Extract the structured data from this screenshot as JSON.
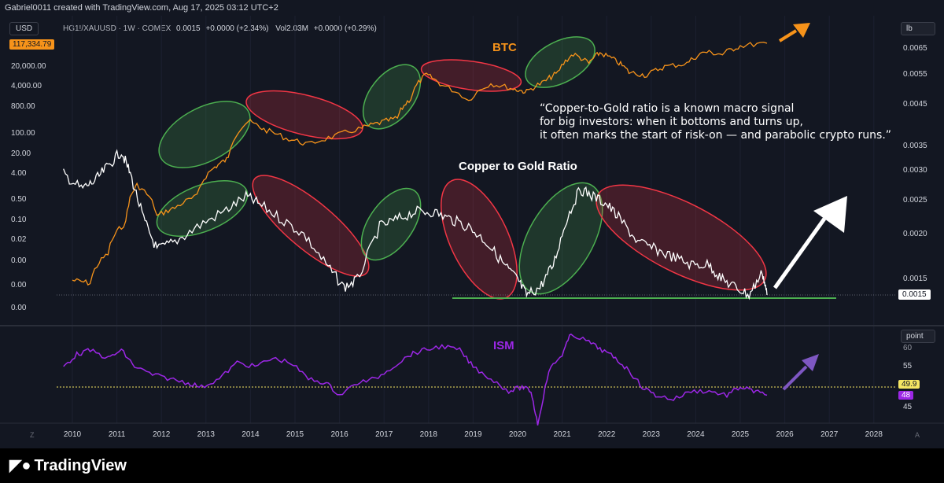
{
  "header": {
    "attribution": "Gabriel0011 created with TradingView.com, Aug 17, 2025 03:12 UTC+2",
    "symbol": "HG1!/XAUUSD · 1W · COMEX",
    "last": "0.0015",
    "change": "+0.0000 (+2.34%)",
    "vol_label": "Vol",
    "vol": "2.03M",
    "vol_change": "+0.0000 (+0.29%)"
  },
  "left_scale": {
    "currency": "USD",
    "btc_price": "117,334.79",
    "ticks": [
      "20,000.00",
      "4,000.00",
      "800.00",
      "100.00",
      "20.00",
      "4.00",
      "0.50",
      "0.10",
      "0.02",
      "0.00",
      "0.00",
      "0.00"
    ]
  },
  "right_scale": {
    "unit": "lb",
    "ticks": [
      "0.0065",
      "0.0055",
      "0.0045",
      "0.0035",
      "0.0030",
      "0.0025",
      "0.0020",
      "0.0015"
    ],
    "last_value": "0.0015"
  },
  "ism_scale": {
    "unit": "point",
    "ticks": [
      "60",
      "55",
      "45"
    ],
    "tag_a": "49.9",
    "tag_b": "48"
  },
  "x_axis": {
    "years": [
      "2010",
      "2011",
      "2012",
      "2013",
      "2014",
      "2015",
      "2016",
      "2017",
      "2018",
      "2019",
      "2020",
      "2021",
      "2022",
      "2023",
      "2024",
      "2025",
      "2026",
      "2027",
      "2028"
    ],
    "corner_left": "Z",
    "corner_right": "A"
  },
  "annotations": {
    "btc_label": "BTC",
    "ratio_label": "Copper to Gold Ratio",
    "ism_label": "ISM",
    "quote": "“Copper-to-Gold ratio is a known macro signal\nfor big investors: when it bottoms and turns up,\nit often marks the start of risk-on — and parabolic crypto runs.”"
  },
  "footer": {
    "brand": "TradingView"
  },
  "colors": {
    "background": "#131722",
    "btc": "#f7931a",
    "ratio": "#ffffff",
    "ism": "#9c27e6",
    "support_line": "#4caf50",
    "bull_ellipse": "#4caf50",
    "bear_ellipse": "#f23645",
    "ism_50_line": "#f5e663",
    "arrow_white": "#ffffff",
    "arrow_btc": "#f7931a",
    "arrow_ism": "#7e57c2"
  },
  "chart_data": [
    {
      "type": "line",
      "title": "BTC",
      "log_scale": true,
      "x": [
        2010.0,
        2010.4,
        2010.8,
        2011.2,
        2011.45,
        2011.9,
        2012.3,
        2012.8,
        2013.2,
        2013.5,
        2013.95,
        2014.3,
        2014.8,
        2015.3,
        2015.9,
        2016.5,
        2016.9,
        2017.3,
        2017.6,
        2017.95,
        2018.3,
        2018.9,
        2019.4,
        2019.9,
        2020.2,
        2020.6,
        2020.9,
        2021.25,
        2021.6,
        2021.85,
        2022.2,
        2022.5,
        2022.9,
        2023.3,
        2023.8,
        2024.2,
        2024.6,
        2025.0,
        2025.6
      ],
      "y": [
        0.06,
        0.05,
        0.3,
        2,
        20,
        3,
        5,
        10,
        60,
        100,
        1000,
        600,
        350,
        240,
        400,
        650,
        900,
        1200,
        4000,
        17000,
        9000,
        3500,
        10000,
        7200,
        6000,
        11000,
        19000,
        60000,
        34000,
        65000,
        40000,
        20000,
        16500,
        28000,
        34000,
        69000,
        60000,
        100000,
        117334.79
      ]
    },
    {
      "type": "line",
      "title": "Copper to Gold Ratio",
      "unit": "lb",
      "x": [
        2009.8,
        2010.2,
        2010.5,
        2010.8,
        2011.1,
        2011.3,
        2011.6,
        2011.9,
        2012.3,
        2012.8,
        2013.4,
        2013.9,
        2014.2,
        2014.7,
        2015.2,
        2015.7,
        2016.1,
        2016.4,
        2016.9,
        2017.3,
        2017.7,
        2018.1,
        2018.5,
        2018.9,
        2019.3,
        2019.7,
        2020.0,
        2020.2,
        2020.5,
        2020.8,
        2021.1,
        2021.4,
        2021.7,
        2022.0,
        2022.3,
        2022.7,
        2023.1,
        2023.5,
        2023.9,
        2024.3,
        2024.6,
        2024.9,
        2025.2,
        2025.5,
        2025.6
      ],
      "y": [
        0.0031,
        0.0029,
        0.003,
        0.0032,
        0.0034,
        0.0031,
        0.0025,
        0.0021,
        0.0022,
        0.0024,
        0.0026,
        0.0028,
        0.0027,
        0.0025,
        0.0023,
        0.0019,
        0.0016,
        0.0017,
        0.0024,
        0.0025,
        0.0026,
        0.0026,
        0.0025,
        0.0024,
        0.0022,
        0.0019,
        0.0017,
        0.0015,
        0.0016,
        0.0019,
        0.0025,
        0.0029,
        0.0028,
        0.0027,
        0.0025,
        0.0022,
        0.0021,
        0.002,
        0.0019,
        0.0019,
        0.0017,
        0.0016,
        0.0015,
        0.0018,
        0.0015
      ]
    },
    {
      "type": "line",
      "title": "ISM",
      "unit": "point",
      "x": [
        2009.8,
        2010.1,
        2010.4,
        2010.8,
        2011.1,
        2011.4,
        2011.8,
        2012.2,
        2012.6,
        2012.9,
        2013.3,
        2013.7,
        2014.1,
        2014.5,
        2014.9,
        2015.3,
        2015.7,
        2016.0,
        2016.4,
        2016.8,
        2017.2,
        2017.6,
        2017.9,
        2018.3,
        2018.7,
        2019.0,
        2019.4,
        2019.8,
        2020.1,
        2020.3,
        2020.45,
        2020.7,
        2021.0,
        2021.2,
        2021.6,
        2021.9,
        2022.2,
        2022.5,
        2022.8,
        2023.1,
        2023.5,
        2023.9,
        2024.3,
        2024.7,
        2025.0,
        2025.3,
        2025.6
      ],
      "y": [
        55,
        58,
        59,
        57,
        59,
        55,
        53,
        52,
        51,
        50,
        52,
        56,
        55,
        57,
        56,
        52,
        51,
        48,
        51,
        52,
        55,
        58,
        59,
        60,
        59,
        55,
        52,
        49,
        50,
        49,
        41,
        54,
        58,
        63,
        61,
        59,
        57,
        54,
        50,
        48,
        47,
        49,
        49,
        48,
        50,
        49,
        48
      ]
    }
  ]
}
